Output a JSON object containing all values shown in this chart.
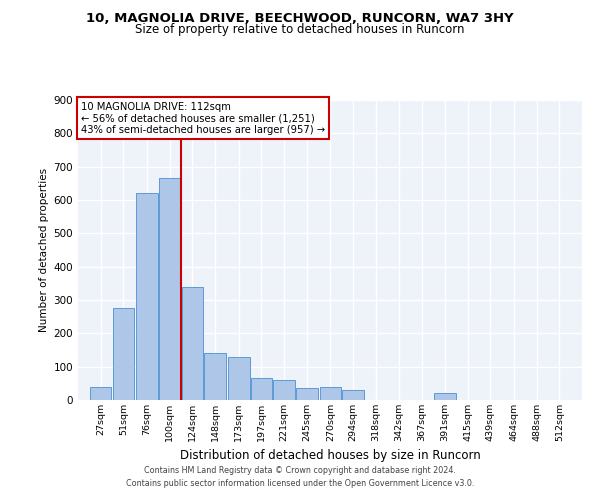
{
  "title_line1": "10, MAGNOLIA DRIVE, BEECHWOOD, RUNCORN, WA7 3HY",
  "title_line2": "Size of property relative to detached houses in Runcorn",
  "xlabel": "Distribution of detached houses by size in Runcorn",
  "ylabel": "Number of detached properties",
  "footer_line1": "Contains HM Land Registry data © Crown copyright and database right 2024.",
  "footer_line2": "Contains public sector information licensed under the Open Government Licence v3.0.",
  "bin_labels": [
    "27sqm",
    "51sqm",
    "76sqm",
    "100sqm",
    "124sqm",
    "148sqm",
    "173sqm",
    "197sqm",
    "221sqm",
    "245sqm",
    "270sqm",
    "294sqm",
    "318sqm",
    "342sqm",
    "367sqm",
    "391sqm",
    "415sqm",
    "439sqm",
    "464sqm",
    "488sqm",
    "512sqm"
  ],
  "bar_values": [
    40,
    275,
    620,
    665,
    340,
    140,
    130,
    65,
    60,
    35,
    40,
    30,
    0,
    0,
    0,
    20,
    0,
    0,
    0,
    0,
    0
  ],
  "bar_color": "#aec6e8",
  "bar_edge_color": "#5b9bd5",
  "annotation_line1": "10 MAGNOLIA DRIVE: 112sqm",
  "annotation_line2": "← 56% of detached houses are smaller (1,251)",
  "annotation_line3": "43% of semi-detached houses are larger (957) →",
  "vline_x": 112,
  "vline_color": "#cc0000",
  "ylim": [
    0,
    900
  ],
  "yticks": [
    0,
    100,
    200,
    300,
    400,
    500,
    600,
    700,
    800,
    900
  ],
  "bg_color": "#eef2f9",
  "grid_color": "#ffffff",
  "fig_width": 6.0,
  "fig_height": 5.0,
  "dpi": 100
}
